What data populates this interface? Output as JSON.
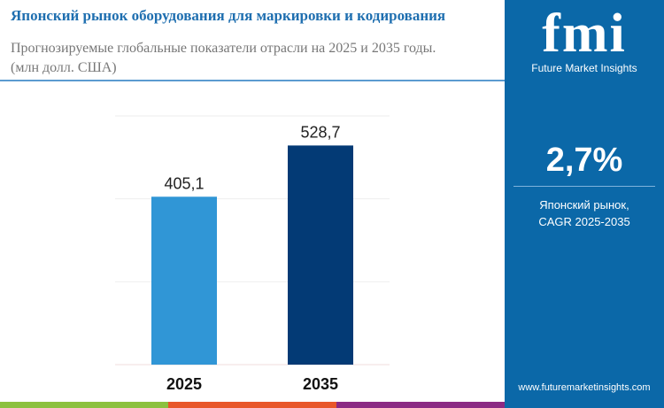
{
  "header": {
    "title": "Японский рынок оборудования для маркировки и кодирования",
    "subtitle": "Прогнозируемые глобальные показатели отрасли на 2025 и 2035 годы.",
    "unit": "(млн долл. США)"
  },
  "sidebar": {
    "logo_text": "fmi",
    "logo_subtitle": "Future Market Insights",
    "cagr_value": "2,7%",
    "cagr_label_1": "Японский рынок,",
    "cagr_label_2": "CAGR 2025-2035",
    "website": "www.futuremarketinsights.com"
  },
  "chart_data": {
    "type": "bar",
    "categories": [
      "2025",
      "2035"
    ],
    "values": [
      405.1,
      528.7
    ],
    "labels": [
      "405,1",
      "528,7"
    ],
    "colors": [
      "#3096d6",
      "#033a75"
    ],
    "ylim": [
      0,
      600
    ],
    "grid": true,
    "yticks": [
      0,
      200,
      400,
      600
    ]
  },
  "colors": {
    "accent": "#0b68a8",
    "strip": [
      "#8cc13f",
      "#e8572a",
      "#8b2a84"
    ]
  }
}
